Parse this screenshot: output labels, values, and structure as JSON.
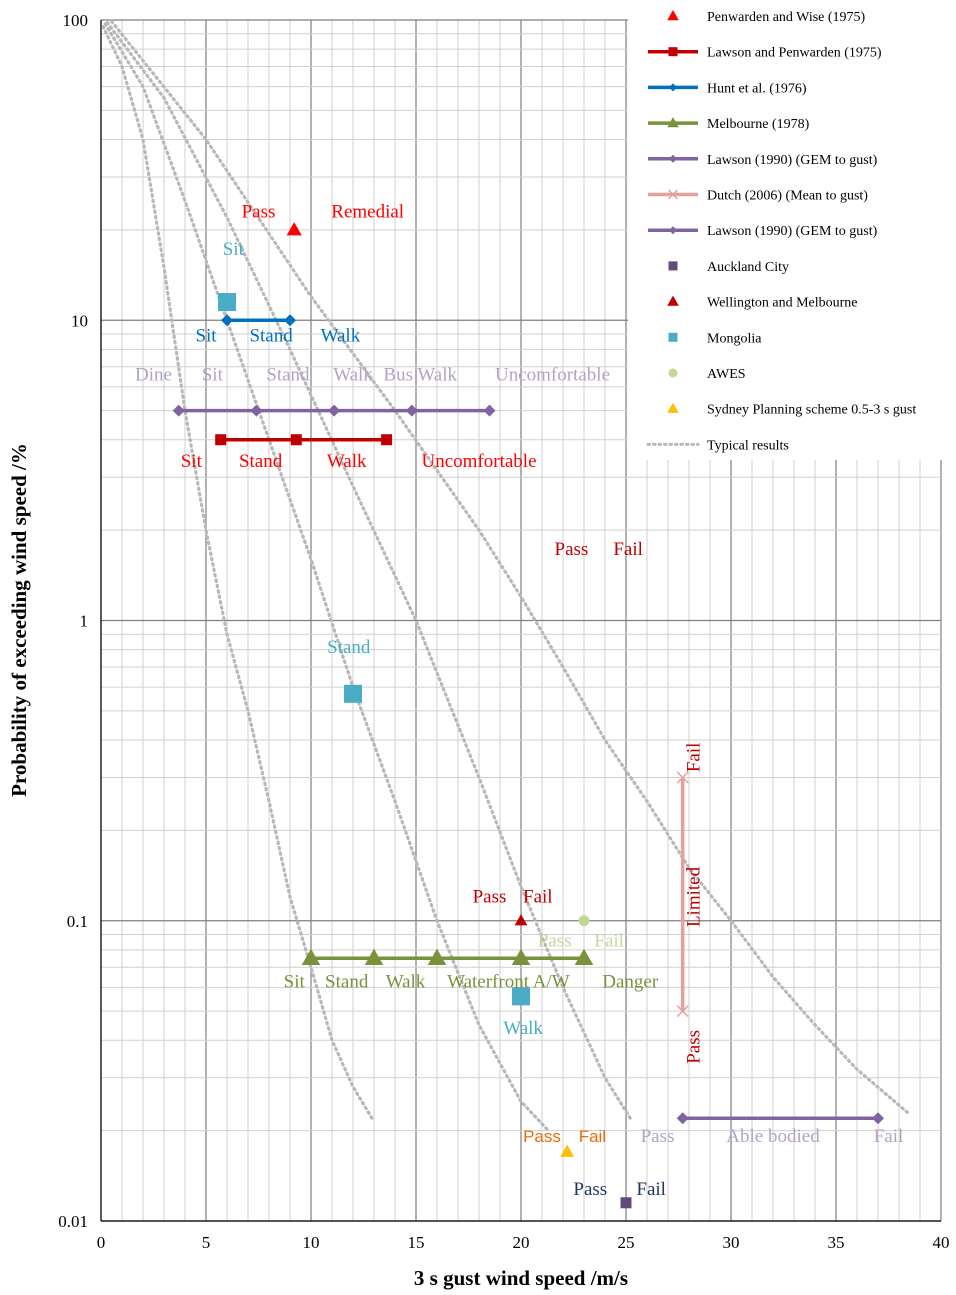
{
  "chart_data": {
    "type": "scatter",
    "xlabel": "3 s gust wind speed /m/s",
    "ylabel": "Probability of exceeding wind speed /%",
    "x_scale": "linear",
    "y_scale": "log",
    "xlim": [
      0,
      40
    ],
    "ylim": [
      0.01,
      100
    ],
    "x_ticks": [
      "0",
      "5",
      "10",
      "15",
      "20",
      "25",
      "30",
      "35",
      "40"
    ],
    "y_ticks": [
      "0.01",
      "0.1",
      "1",
      "10",
      "100"
    ],
    "grid": true,
    "legend_position": "top-right",
    "series": [
      {
        "name": "Penwarden and Wise (1975)",
        "marker": "triangle",
        "line": false,
        "color": "#ff0000",
        "points": [
          {
            "x": 9.2,
            "y": 20
          }
        ]
      },
      {
        "name": "Lawson and Penwarden (1975)",
        "marker": "square",
        "line": true,
        "color": "#c00000",
        "points": [
          {
            "x": 5.7,
            "y": 4
          },
          {
            "x": 9.3,
            "y": 4
          },
          {
            "x": 13.6,
            "y": 4
          }
        ]
      },
      {
        "name": "Hunt et al. (1976)",
        "marker": "diamond",
        "line": true,
        "color": "#0070c0",
        "points": [
          {
            "x": 6,
            "y": 10
          },
          {
            "x": 9,
            "y": 10
          }
        ]
      },
      {
        "name": "Melbourne (1978)",
        "marker": "triangle",
        "line": true,
        "color": "#77933c",
        "points": [
          {
            "x": 10,
            "y": 0.075
          },
          {
            "x": 13,
            "y": 0.075
          },
          {
            "x": 16,
            "y": 0.075
          },
          {
            "x": 20,
            "y": 0.075
          },
          {
            "x": 23,
            "y": 0.075
          }
        ]
      },
      {
        "name": "Lawson (1990) (GEM to gust)",
        "marker": "diamond",
        "line": true,
        "color": "#8064a2",
        "points": [
          {
            "x": 3.7,
            "y": 5
          },
          {
            "x": 7.4,
            "y": 5
          },
          {
            "x": 11.1,
            "y": 5
          },
          {
            "x": 14.8,
            "y": 5
          },
          {
            "x": 18.5,
            "y": 5
          }
        ]
      },
      {
        "name": "Dutch (2006) (Mean to gust)",
        "marker": "x",
        "line": true,
        "color": "#e6a0a0",
        "points": [
          {
            "x": 27.7,
            "y": 0.3
          },
          {
            "x": 27.7,
            "y": 0.05
          }
        ]
      },
      {
        "name": "Lawson (1990) (GEM to gust)",
        "marker": "diamond",
        "line": true,
        "color": "#8064a2",
        "points": [
          {
            "x": 27.7,
            "y": 0.022
          },
          {
            "x": 37,
            "y": 0.022
          }
        ]
      },
      {
        "name": "Auckland City",
        "marker": "square",
        "line": false,
        "color": "#604a7b",
        "points": [
          {
            "x": 25,
            "y": 0.0115
          }
        ]
      },
      {
        "name": "Wellington and Melbourne",
        "marker": "triangle",
        "line": false,
        "color": "#c00000",
        "points": [
          {
            "x": 20,
            "y": 0.1
          }
        ]
      },
      {
        "name": "Mongolia",
        "marker": "square",
        "line": false,
        "color": "#4bacc6",
        "points": [
          {
            "x": 6,
            "y": 11.5
          },
          {
            "x": 12,
            "y": 0.57
          },
          {
            "x": 20,
            "y": 0.056
          }
        ]
      },
      {
        "name": "AWES",
        "marker": "circle",
        "line": false,
        "color": "#c3d69b",
        "points": [
          {
            "x": 23,
            "y": 0.1
          }
        ]
      },
      {
        "name": "Sydney Planning scheme 0.5-3 s gust",
        "marker": "triangle",
        "line": false,
        "color": "#ffc000",
        "points": [
          {
            "x": 22.2,
            "y": 0.017
          }
        ]
      },
      {
        "name": "Typical results",
        "marker": "none",
        "line": "dotted",
        "color": "#b8b8b8",
        "curves": [
          [
            [
              0.1,
              95
            ],
            [
              1,
              70
            ],
            [
              2,
              40
            ],
            [
              3,
              15
            ],
            [
              4,
              5
            ],
            [
              5,
              2
            ],
            [
              6,
              0.9
            ],
            [
              7,
              0.5
            ],
            [
              8,
              0.25
            ],
            [
              9,
              0.12
            ],
            [
              10,
              0.07
            ],
            [
              11,
              0.04
            ],
            [
              12,
              0.028
            ],
            [
              12.9,
              0.022
            ]
          ],
          [
            [
              0.2,
              97
            ],
            [
              2,
              60
            ],
            [
              4,
              25
            ],
            [
              6,
              10
            ],
            [
              8,
              4
            ],
            [
              10,
              1.6
            ],
            [
              12,
              0.6
            ],
            [
              14,
              0.25
            ],
            [
              16,
              0.1
            ],
            [
              18,
              0.045
            ],
            [
              20,
              0.025
            ],
            [
              21.3,
              0.02
            ]
          ],
          [
            [
              0.3,
              98
            ],
            [
              3,
              55
            ],
            [
              6,
              22
            ],
            [
              9,
              8
            ],
            [
              12,
              2.8
            ],
            [
              15,
              1
            ],
            [
              18,
              0.3
            ],
            [
              20,
              0.13
            ],
            [
              22,
              0.06
            ],
            [
              24,
              0.03
            ],
            [
              25.2,
              0.022
            ]
          ],
          [
            [
              0.5,
              99
            ],
            [
              5,
              40
            ],
            [
              10,
              12
            ],
            [
              14,
              5
            ],
            [
              18,
              2
            ],
            [
              20,
              1.2
            ],
            [
              22,
              0.7
            ],
            [
              24,
              0.4
            ],
            [
              26,
              0.25
            ],
            [
              28,
              0.15
            ],
            [
              30,
              0.1
            ],
            [
              32,
              0.065
            ],
            [
              34,
              0.045
            ],
            [
              36,
              0.032
            ],
            [
              38.4,
              0.023
            ]
          ]
        ]
      }
    ],
    "annotations": [
      {
        "text": "Pass",
        "x": 7.5,
        "y": 22,
        "color": "#ff0000"
      },
      {
        "text": "Remedial",
        "x": 12.7,
        "y": 22,
        "color": "#ff0000"
      },
      {
        "text": "Sit",
        "x": 6.3,
        "y": 16.5,
        "color": "#4bacc6"
      },
      {
        "text": "Sit",
        "x": 5,
        "y": 8.5,
        "color": "#0070c0"
      },
      {
        "text": "Stand",
        "x": 8.1,
        "y": 8.5,
        "color": "#0070c0"
      },
      {
        "text": "Walk",
        "x": 11.4,
        "y": 8.5,
        "color": "#0070c0"
      },
      {
        "text": "Dine",
        "x": 2.5,
        "y": 6.3,
        "color": "#b3a2c7"
      },
      {
        "text": "Sit",
        "x": 5.3,
        "y": 6.3,
        "color": "#b3a2c7"
      },
      {
        "text": "Stand",
        "x": 8.9,
        "y": 6.3,
        "color": "#b3a2c7"
      },
      {
        "text": "Walk",
        "x": 12,
        "y": 6.3,
        "color": "#b3a2c7"
      },
      {
        "text": "Bus Walk",
        "x": 15.2,
        "y": 6.3,
        "color": "#b3a2c7"
      },
      {
        "text": "Uncomfortable",
        "x": 21.5,
        "y": 6.3,
        "color": "#b3a2c7"
      },
      {
        "text": "Sit",
        "x": 4.3,
        "y": 3.25,
        "color": "#ff0000"
      },
      {
        "text": "Stand",
        "x": 7.6,
        "y": 3.25,
        "color": "#ff0000"
      },
      {
        "text": "Walk",
        "x": 11.7,
        "y": 3.25,
        "color": "#ff0000"
      },
      {
        "text": "Uncomfortable",
        "x": 18,
        "y": 3.25,
        "color": "#ff0000"
      },
      {
        "text": "Pass",
        "x": 22.4,
        "y": 1.65,
        "color": "#c00000"
      },
      {
        "text": "Fail",
        "x": 25.1,
        "y": 1.65,
        "color": "#c00000"
      },
      {
        "text": "Stand",
        "x": 11.8,
        "y": 0.78,
        "color": "#4bacc6"
      },
      {
        "text": "Pass",
        "x": 18.5,
        "y": 0.115,
        "color": "#c00000"
      },
      {
        "text": "Fail",
        "x": 20.8,
        "y": 0.115,
        "color": "#c00000"
      },
      {
        "text": "Pass",
        "x": 21.6,
        "y": 0.082,
        "color": "#c3d69b"
      },
      {
        "text": "Fail",
        "x": 24.2,
        "y": 0.082,
        "color": "#c3d69b"
      },
      {
        "text": "Sit",
        "x": 9.2,
        "y": 0.06,
        "color": "#77933c"
      },
      {
        "text": "Stand",
        "x": 11.7,
        "y": 0.06,
        "color": "#77933c"
      },
      {
        "text": "Walk",
        "x": 14.5,
        "y": 0.06,
        "color": "#77933c"
      },
      {
        "text": "Waterfront A/W",
        "x": 19.4,
        "y": 0.06,
        "color": "#77933c"
      },
      {
        "text": "Danger",
        "x": 25.2,
        "y": 0.06,
        "color": "#77933c"
      },
      {
        "text": "Walk",
        "x": 20.1,
        "y": 0.042,
        "color": "#4bacc6"
      },
      {
        "text": "Fail",
        "x": 28.5,
        "y": 0.35,
        "color": "#c00000",
        "rotate": true
      },
      {
        "text": "Limited",
        "x": 28.5,
        "y": 0.12,
        "color": "#c00000",
        "rotate": true
      },
      {
        "text": "Pass",
        "x": 28.5,
        "y": 0.038,
        "color": "#c00000",
        "rotate": true
      },
      {
        "text": "Pass",
        "x": 21,
        "y": 0.0183,
        "color": "#e46c0a",
        "sans": true
      },
      {
        "text": "Fail",
        "x": 23.4,
        "y": 0.0183,
        "color": "#e46c0a",
        "sans": true
      },
      {
        "text": "Pass",
        "x": 26.5,
        "y": 0.0183,
        "color": "#b3a2c7"
      },
      {
        "text": "Able bodied",
        "x": 32,
        "y": 0.0183,
        "color": "#b3a2c7"
      },
      {
        "text": "Fail",
        "x": 37.5,
        "y": 0.0183,
        "color": "#b3a2c7"
      },
      {
        "text": "Pass",
        "x": 23.3,
        "y": 0.0122,
        "color": "#1f3864"
      },
      {
        "text": "Fail",
        "x": 26.2,
        "y": 0.0122,
        "color": "#1f3864"
      }
    ]
  }
}
